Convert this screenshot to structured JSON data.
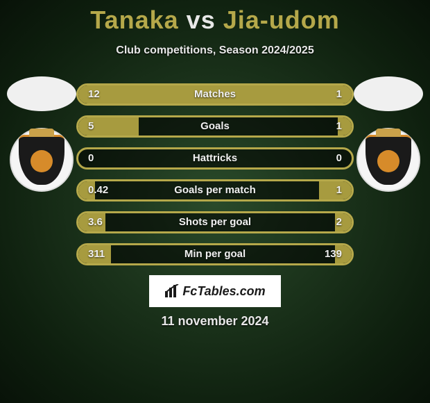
{
  "title": {
    "p1": "Tanaka",
    "vs": "vs",
    "p2": "Jia-udom"
  },
  "subtitle": "Club competitions, Season 2024/2025",
  "date": "11 november 2024",
  "brand": "FcTables.com",
  "colors": {
    "accent": "#a79b3f",
    "accent_border": "#b5a84a",
    "disc_left": "#f0f0f0",
    "disc_right": "#f0f0f0",
    "bg0": "#2a4a2a",
    "bg1": "#0e1f0e"
  },
  "stats": [
    {
      "label": "Matches",
      "left_val": "12",
      "right_val": "1",
      "left_pct": 92,
      "right_pct": 8
    },
    {
      "label": "Goals",
      "left_val": "5",
      "right_val": "1",
      "left_pct": 22,
      "right_pct": 5
    },
    {
      "label": "Hattricks",
      "left_val": "0",
      "right_val": "0",
      "left_pct": 0,
      "right_pct": 0
    },
    {
      "label": "Goals per match",
      "left_val": "0.42",
      "right_val": "1",
      "left_pct": 6,
      "right_pct": 12
    },
    {
      "label": "Shots per goal",
      "left_val": "3.6",
      "right_val": "2",
      "left_pct": 10,
      "right_pct": 6
    },
    {
      "label": "Min per goal",
      "left_val": "311",
      "right_val": "139",
      "left_pct": 12,
      "right_pct": 6
    }
  ]
}
